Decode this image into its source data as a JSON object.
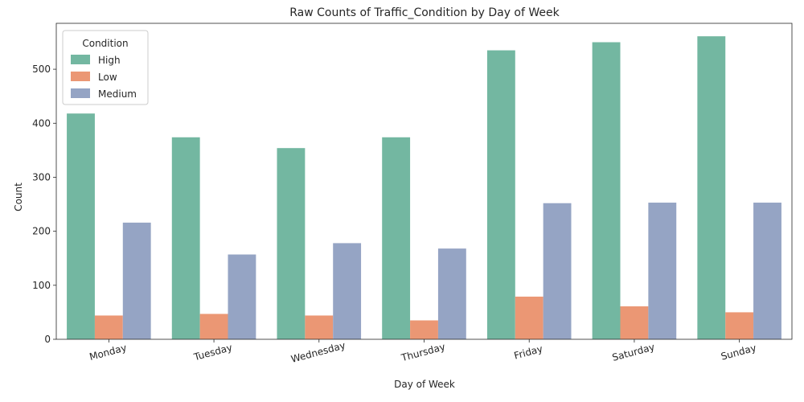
{
  "chart_data": {
    "type": "bar",
    "title": "Raw Counts of Traffic_Condition by Day of Week",
    "xlabel": "Day of Week",
    "ylabel": "Count",
    "categories": [
      "Monday",
      "Tuesday",
      "Wednesday",
      "Thursday",
      "Friday",
      "Saturday",
      "Sunday"
    ],
    "series": [
      {
        "name": "High",
        "color": "#73b7a1",
        "values": [
          418,
          374,
          354,
          374,
          535,
          550,
          561
        ]
      },
      {
        "name": "Low",
        "color": "#eb9774",
        "values": [
          44,
          47,
          44,
          35,
          79,
          61,
          50
        ]
      },
      {
        "name": "Medium",
        "color": "#95a4c4",
        "values": [
          216,
          157,
          178,
          168,
          252,
          253,
          253
        ]
      }
    ],
    "ylim": [
      0,
      585
    ],
    "yticks": [
      0,
      100,
      200,
      300,
      400,
      500
    ],
    "legend": {
      "title": "Condition",
      "placement": "top-left"
    },
    "grid": false
  }
}
